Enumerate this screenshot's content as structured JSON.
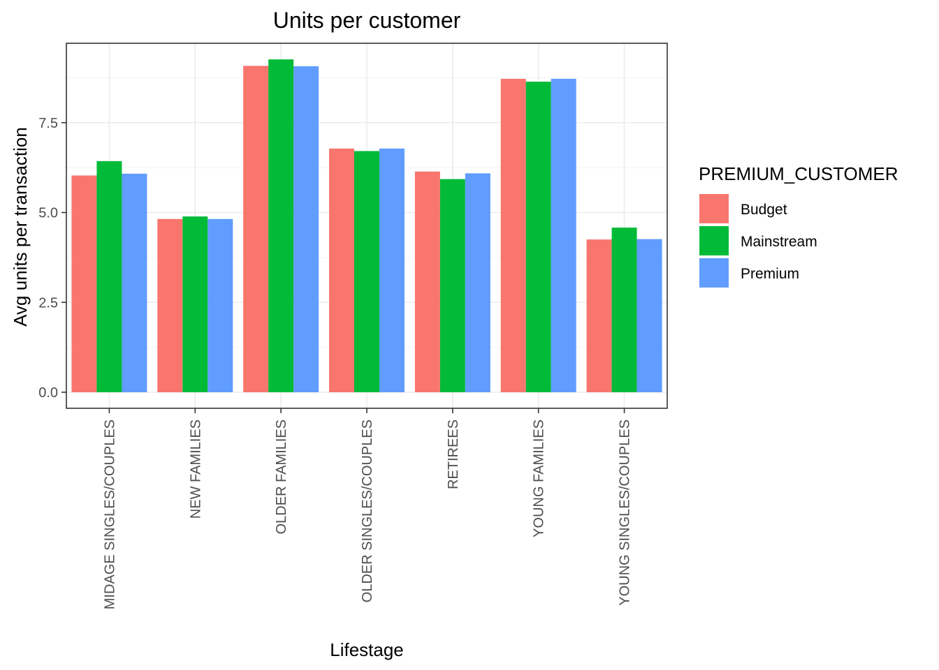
{
  "chart_data": {
    "type": "bar",
    "title": "Units per customer",
    "xlabel": "Lifestage",
    "ylabel": "Avg units per transaction",
    "categories": [
      "MIDAGE SINGLES/COUPLES",
      "NEW FAMILIES",
      "OLDER FAMILIES",
      "OLDER SINGLES/COUPLES",
      "RETIREES",
      "YOUNG FAMILIES",
      "YOUNG SINGLES/COUPLES"
    ],
    "series": [
      {
        "name": "Budget",
        "color": "#F8766D",
        "values": [
          6.03,
          4.82,
          9.08,
          6.78,
          6.14,
          8.72,
          4.25
        ]
      },
      {
        "name": "Mainstream",
        "color": "#00BA38",
        "values": [
          6.43,
          4.89,
          9.26,
          6.71,
          5.93,
          8.64,
          4.58
        ]
      },
      {
        "name": "Premium",
        "color": "#619CFF",
        "values": [
          6.08,
          4.82,
          9.07,
          6.78,
          6.09,
          8.72,
          4.26
        ]
      }
    ],
    "ylim": [
      0,
      9.7
    ],
    "yticks": [
      0,
      2.5,
      5,
      7.5
    ],
    "ytick_labels": [
      "0.0",
      "2.5",
      "5.0",
      "7.5"
    ],
    "legend": {
      "title": "PREMIUM_CUSTOMER",
      "position": "right"
    },
    "grid": true
  }
}
